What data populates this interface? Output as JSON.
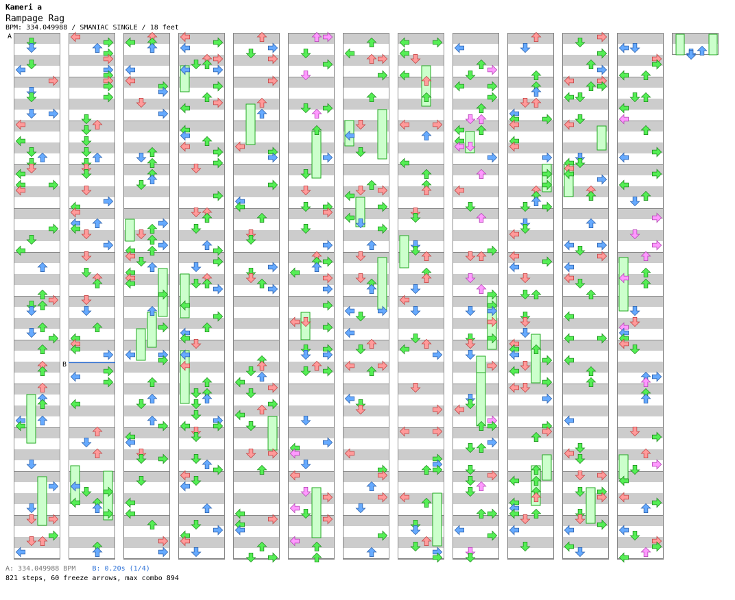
{
  "header": {
    "author": "Kameri a",
    "song_title": "Rampage Rag",
    "info_line": "BPM: 334.049988 / SMANIAC SINGLE / 18 feet"
  },
  "markers": {
    "a_label": "A",
    "b_label": "B"
  },
  "footer": {
    "bpm_note": "A: 334.049988 BPM",
    "stop_note": "B: 0.20s (1/4)",
    "stats": "821 steps, 60 freeze arrows, max combo 894"
  },
  "colors": {
    "quarter": "#ff9a9a",
    "eighth": "#66aaff",
    "sixteenth": "#55ee55",
    "twelfth": "#ff99ff",
    "freeze_fill": "#ccffcc",
    "freeze_edge": "#22aa22",
    "stripe": "#cccccc",
    "border": "#888888"
  },
  "chart_data": {
    "type": "step-chart",
    "style": "SINGLE",
    "difficulty": "SMANIAC",
    "feet": 18,
    "bpm": 334.049988,
    "steps": 821,
    "freeze_arrows": 60,
    "max_combo": 894,
    "lanes": [
      "left",
      "down",
      "up",
      "right"
    ],
    "columns": 13,
    "measures_per_column": 12
  }
}
